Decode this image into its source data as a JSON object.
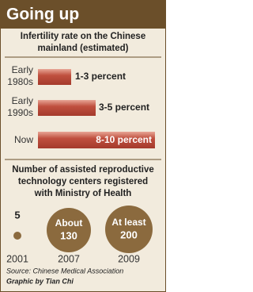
{
  "header": {
    "title": "Going up"
  },
  "infertility": {
    "title": [
      "Infertility rate on the Chinese",
      "mainland (estimated)"
    ],
    "rows": [
      {
        "period": [
          "Early",
          "1980s"
        ],
        "label": "1-3 percent"
      },
      {
        "period": [
          "Early",
          "1990s"
        ],
        "label": "3-5 percent"
      },
      {
        "period": [
          "Now"
        ],
        "label": "8-10 percent"
      }
    ]
  },
  "centers": {
    "title": [
      "Number of assisted reproductive",
      "technology centers registered",
      "with Ministry of Health"
    ],
    "items": [
      {
        "label": [
          "5"
        ],
        "year": "2001"
      },
      {
        "label": [
          "About",
          "130"
        ],
        "year": "2007"
      },
      {
        "label": [
          "At least",
          "200"
        ],
        "year": "2009"
      }
    ]
  },
  "source": "Source: Chinese Medical Association",
  "credit": "Graphic by Tian Chi"
}
